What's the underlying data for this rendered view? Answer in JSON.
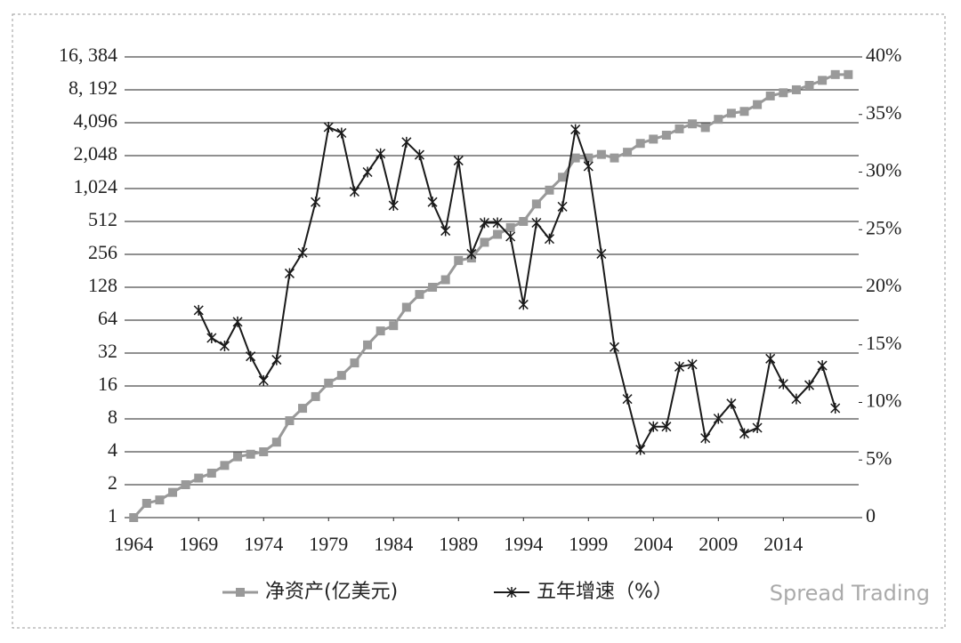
{
  "chart_data": {
    "type": "line",
    "x": [
      1964,
      1965,
      1966,
      1967,
      1968,
      1969,
      1970,
      1971,
      1972,
      1973,
      1974,
      1975,
      1976,
      1977,
      1978,
      1979,
      1980,
      1981,
      1982,
      1983,
      1984,
      1985,
      1986,
      1987,
      1988,
      1989,
      1990,
      1991,
      1992,
      1993,
      1994,
      1995,
      1996,
      1997,
      1998,
      1999,
      2000,
      2001,
      2002,
      2003,
      2004,
      2005,
      2006,
      2007,
      2008,
      2009,
      2010,
      2011,
      2012,
      2013,
      2014,
      2015,
      2016,
      2017,
      2018,
      2019
    ],
    "series": [
      {
        "name": "净资产(亿美元)",
        "color": "#999999",
        "marker": "square",
        "values": [
          1,
          1.35,
          1.45,
          1.7,
          2,
          2.3,
          2.55,
          3,
          3.6,
          3.8,
          4,
          4.9,
          7.7,
          10,
          12.8,
          17,
          20,
          26,
          38,
          51,
          57,
          84,
          110,
          128,
          150,
          225,
          237,
          330,
          390,
          450,
          512,
          740,
          990,
          1300,
          1950,
          1950,
          2100,
          1950,
          2200,
          2650,
          2900,
          3150,
          3600,
          4000,
          3700,
          4400,
          5000,
          5200,
          6000,
          7200,
          7700,
          8200,
          9000,
          10000,
          11300,
          11300
        ]
      },
      {
        "name": "五年增速（%）",
        "color": "#1a1a1a",
        "marker": "star",
        "axis": "y2",
        "values": [
          null,
          null,
          null,
          null,
          null,
          18.0,
          15.6,
          14.9,
          17.0,
          14.0,
          11.9,
          13.7,
          21.2,
          23.0,
          27.4,
          33.9,
          33.4,
          28.3,
          30.0,
          31.6,
          27.1,
          32.6,
          31.5,
          27.4,
          24.9,
          31.0,
          22.9,
          25.6,
          25.6,
          24.4,
          18.5,
          25.6,
          24.2,
          27.0,
          33.7,
          30.5,
          22.9,
          14.8,
          10.3,
          5.9,
          7.9,
          7.9,
          13.1,
          13.3,
          6.9,
          8.6,
          9.9,
          7.3,
          7.8,
          13.8,
          11.6,
          10.3,
          11.5,
          13.2,
          9.5,
          null
        ]
      }
    ],
    "xlim": [
      1963.3,
      2019.8
    ],
    "xticks": [
      1964,
      1969,
      1974,
      1979,
      1984,
      1989,
      1994,
      1999,
      2004,
      2009,
      2014
    ],
    "ylim": [
      1,
      16384
    ],
    "y_log_base": 2,
    "yticks": [
      1,
      2,
      4,
      8,
      16,
      32,
      64,
      128,
      256,
      512,
      {
        "value": 1024,
        "label": "1,024"
      },
      {
        "value": 2048,
        "label": "2,048"
      },
      {
        "value": 4096,
        "label": "4,096"
      },
      {
        "value": 8192,
        "label": "8, 192"
      },
      {
        "value": 16384,
        "label": "16, 384"
      }
    ],
    "y2lim": [
      0,
      40
    ],
    "y2ticks": [
      {
        "value": 0,
        "label": "0"
      },
      {
        "value": 5,
        "label": "5%"
      },
      {
        "value": 10,
        "label": "10%"
      },
      {
        "value": 15,
        "label": "15%"
      },
      {
        "value": 20,
        "label": "20%"
      },
      {
        "value": 25,
        "label": "25%"
      },
      {
        "value": 30,
        "label": "30%"
      },
      {
        "value": 35,
        "label": "35%"
      },
      {
        "value": 40,
        "label": "40%"
      }
    ],
    "grid": true,
    "watermark": "Spread Trading"
  }
}
